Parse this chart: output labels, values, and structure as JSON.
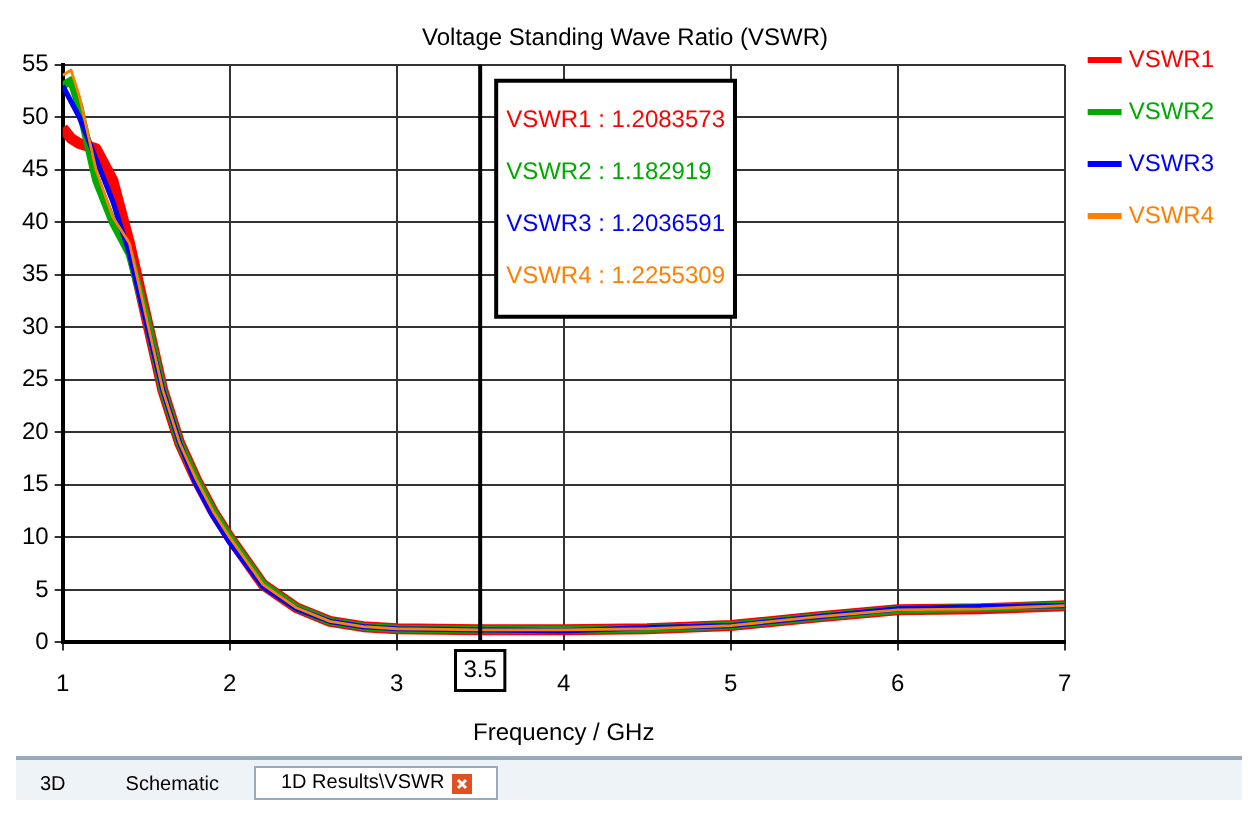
{
  "chart_data": {
    "type": "line",
    "title": "Voltage Standing Wave Ratio (VSWR)",
    "xlabel": "Frequency / GHz",
    "x": [
      1,
      1.05,
      1.1,
      1.2,
      1.3,
      1.4,
      1.5,
      1.6,
      1.7,
      1.8,
      1.9,
      2,
      2.2,
      2.4,
      2.6,
      2.8,
      3,
      3.5,
      4,
      4.5,
      5,
      5.5,
      6,
      6.5,
      7
    ],
    "series": [
      {
        "name": "VSWR1",
        "color": "#ff0000",
        "values": [
          49,
          48,
          47.5,
          47,
          44,
          38,
          31,
          24,
          19,
          15.5,
          12.5,
          10,
          5.5,
          3.3,
          2,
          1.5,
          1.3,
          1.2,
          1.2,
          1.3,
          1.6,
          2.4,
          3.1,
          3.2,
          3.5
        ]
      },
      {
        "name": "VSWR2",
        "color": "#00aa00",
        "values": [
          53,
          53.5,
          51,
          44,
          40,
          37,
          31,
          24,
          19,
          15.5,
          12.5,
          10,
          5.5,
          3.3,
          2,
          1.5,
          1.3,
          1.2,
          1.2,
          1.3,
          1.6,
          2.4,
          3.1,
          3.3,
          3.5
        ]
      },
      {
        "name": "VSWR3",
        "color": "#0000ff",
        "values": [
          53,
          51.5,
          50,
          46,
          42,
          37,
          30.5,
          24,
          19,
          15,
          12,
          9.5,
          5.3,
          3.2,
          2,
          1.5,
          1.3,
          1.2,
          1.1,
          1.4,
          1.6,
          2.4,
          3.2,
          3.4,
          3.5
        ]
      },
      {
        "name": "VSWR4",
        "color": "#ff7f00",
        "values": [
          54,
          54.5,
          52,
          45,
          40.5,
          38,
          31,
          24,
          19,
          15.5,
          12.5,
          10,
          5.5,
          3.3,
          2,
          1.5,
          1.3,
          1.2,
          1.2,
          1.3,
          1.6,
          2.4,
          3.1,
          3.2,
          3.5
        ]
      }
    ],
    "xlim": [
      1,
      7
    ],
    "xticks": [
      1,
      2,
      3,
      4,
      5,
      6,
      7
    ],
    "ylim": [
      0,
      55
    ],
    "yticks": [
      0,
      5,
      10,
      15,
      20,
      25,
      30,
      35,
      40,
      45,
      50,
      55
    ],
    "grid": true,
    "legend": "right",
    "marker": "none",
    "line_style": "solid",
    "ref_lines": [
      {
        "axis": "x",
        "value": 3.5,
        "label": "3.5",
        "color": "#000000"
      }
    ],
    "annotations": [
      "VSWR1 : 1.2083573",
      "VSWR2 : 1.182919",
      "VSWR3 : 1.2036591",
      "VSWR4 : 1.2255309",
      "3D",
      "Schematic",
      "1D Results\\VSWR"
    ]
  }
}
